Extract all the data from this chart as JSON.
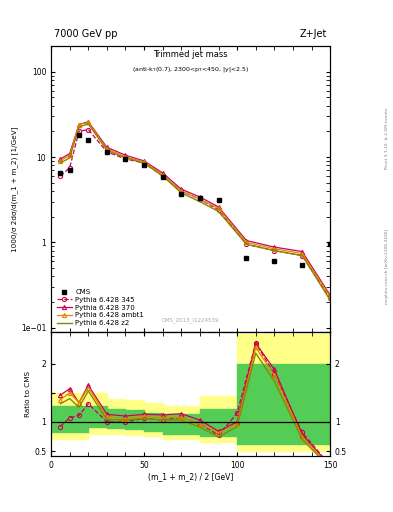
{
  "title_left": "7000 GeV pp",
  "title_right": "Z+Jet",
  "panel_title": "Trimmed jet mass",
  "panel_subtitle": "(anti-k_{T}(0.7), 2300<p_{T}<450, |y|<2.5)",
  "ylabel_main": "1000/σ 2dσ/d(m_1 + m_2) [1/GeV]",
  "ylabel_ratio": "Ratio to CMS",
  "xlabel": "(m_1 + m_2) / 2 [GeV]",
  "watermark": "CMS_2013_I1224539",
  "rivet_text": "Rivet 3.1.10, ≥ 2.5M events",
  "mcplots_text": "mcplots.cern.ch [arXiv:1306.3436]",
  "cms_x": [
    5,
    10,
    15,
    20,
    30,
    40,
    50,
    60,
    70,
    80,
    90,
    105,
    120,
    135,
    150
  ],
  "cms_y": [
    6.5,
    7.0,
    18.0,
    16.0,
    11.5,
    9.5,
    8.0,
    5.8,
    3.7,
    3.3,
    3.1,
    0.65,
    0.6,
    0.55,
    0.95
  ],
  "x_mc": [
    5,
    10,
    15,
    20,
    30,
    40,
    50,
    60,
    70,
    80,
    90,
    105,
    120,
    135,
    150
  ],
  "y_345": [
    6.0,
    7.5,
    20.0,
    21.0,
    11.5,
    9.5,
    8.5,
    6.0,
    4.0,
    3.2,
    2.4,
    0.95,
    0.8,
    0.7,
    0.22
  ],
  "y_370": [
    9.5,
    11.0,
    24.0,
    26.0,
    13.0,
    10.5,
    9.0,
    6.5,
    4.2,
    3.4,
    2.6,
    1.05,
    0.88,
    0.78,
    0.24
  ],
  "y_ambt1": [
    9.0,
    10.5,
    24.0,
    25.5,
    12.5,
    10.0,
    8.8,
    6.2,
    4.0,
    3.2,
    2.5,
    1.0,
    0.84,
    0.74,
    0.23
  ],
  "y_z2": [
    8.5,
    9.8,
    22.5,
    24.5,
    12.0,
    9.8,
    8.5,
    6.0,
    3.8,
    3.0,
    2.3,
    0.95,
    0.8,
    0.7,
    0.21
  ],
  "ratio_x": [
    5,
    10,
    15,
    20,
    30,
    40,
    50,
    60,
    70,
    80,
    90,
    100,
    110,
    120,
    135,
    150
  ],
  "ratio_345": [
    0.92,
    1.07,
    1.11,
    1.31,
    1.0,
    1.0,
    1.06,
    1.03,
    1.08,
    0.97,
    0.77,
    1.15,
    2.35,
    1.82,
    0.82,
    0.25
  ],
  "ratio_370": [
    1.46,
    1.57,
    1.33,
    1.63,
    1.13,
    1.1,
    1.13,
    1.12,
    1.14,
    1.03,
    0.84,
    1.0,
    2.35,
    1.9,
    0.78,
    0.25
  ],
  "ratio_ambt1": [
    1.38,
    1.5,
    1.33,
    1.59,
    1.09,
    1.05,
    1.1,
    1.07,
    1.08,
    0.97,
    0.81,
    0.97,
    2.28,
    1.8,
    0.74,
    0.23
  ],
  "ratio_z2": [
    1.31,
    1.4,
    1.25,
    1.53,
    1.04,
    1.03,
    1.06,
    1.03,
    1.03,
    0.91,
    0.74,
    0.92,
    2.18,
    1.7,
    0.7,
    0.21
  ],
  "band_x": [
    0,
    10,
    20,
    30,
    40,
    50,
    60,
    80,
    100,
    150
  ],
  "band_yellow_lo": [
    0.7,
    0.7,
    0.8,
    0.8,
    0.78,
    0.75,
    0.7,
    0.65,
    0.5,
    0.5
  ],
  "band_yellow_hi": [
    1.5,
    1.5,
    1.5,
    1.4,
    1.38,
    1.32,
    1.28,
    1.45,
    2.5,
    2.5
  ],
  "band_green_lo": [
    0.82,
    0.82,
    0.92,
    0.9,
    0.88,
    0.84,
    0.8,
    0.76,
    0.62,
    0.62
  ],
  "band_green_hi": [
    1.28,
    1.28,
    1.28,
    1.22,
    1.2,
    1.16,
    1.14,
    1.22,
    2.0,
    2.0
  ],
  "color_345": "#cc0055",
  "color_370": "#cc0055",
  "color_ambt1": "#dd8800",
  "color_z2": "#888800",
  "color_cms": "black",
  "color_yellow": "#ffff88",
  "color_green": "#55cc55",
  "xlim": [
    0,
    150
  ],
  "ylim_main_lo": 0.09,
  "ylim_main_hi": 200,
  "ylim_ratio_lo": 0.42,
  "ylim_ratio_hi": 2.55,
  "yticks_ratio": [
    0.5,
    1.0,
    1.5,
    2.0
  ],
  "ytick_labels_ratio": [
    "0.5",
    "1",
    "",
    "2"
  ]
}
